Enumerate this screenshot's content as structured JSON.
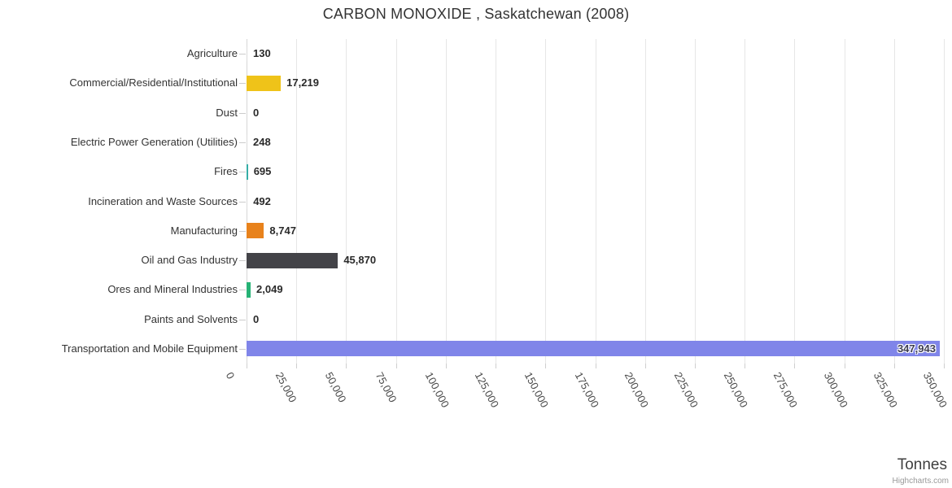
{
  "title": "CARBON MONOXIDE , Saskatchewan (2008)",
  "credits": "Highcharts.com",
  "xaxis": {
    "title": "Tonnes",
    "ticks": [
      "0",
      "25,000",
      "50,000",
      "75,000",
      "100,000",
      "125,000",
      "150,000",
      "175,000",
      "200,000",
      "225,000",
      "250,000",
      "275,000",
      "300,000",
      "325,000",
      "350,000"
    ]
  },
  "chart_data": {
    "type": "bar",
    "orientation": "horizontal",
    "title": "CARBON MONOXIDE , Saskatchewan (2008)",
    "xlabel": "Tonnes",
    "xlim": [
      0,
      350000
    ],
    "grid": true,
    "categories": [
      "Agriculture",
      "Commercial/Residential/Institutional",
      "Dust",
      "Electric Power Generation (Utilities)",
      "Fires",
      "Incineration and Waste Sources",
      "Manufacturing",
      "Oil and Gas Industry",
      "Ores and Mineral Industries",
      "Paints and Solvents",
      "Transportation and Mobile Equipment"
    ],
    "values": [
      130,
      17219,
      0,
      248,
      695,
      492,
      8747,
      45870,
      2049,
      0,
      347943
    ],
    "value_labels": [
      "130",
      "17,219",
      "0",
      "248",
      "695",
      "492",
      "8,747",
      "45,870",
      "2,049",
      "0",
      "347,943"
    ],
    "bar_colors": [
      "#d9d9d9",
      "#efc319",
      "#d9d9d9",
      "#d9d9d9",
      "#35ada6",
      "#d9d9d9",
      "#e8821c",
      "#434348",
      "#26b275",
      "#d9d9d9",
      "#8085e9"
    ],
    "xtick_labels": [
      "0",
      "25,000",
      "50,000",
      "75,000",
      "100,000",
      "125,000",
      "150,000",
      "175,000",
      "200,000",
      "225,000",
      "250,000",
      "275,000",
      "300,000",
      "325,000",
      "350,000"
    ],
    "colors": {
      "grid": "#e6e6e6",
      "axis_line": "#d6d6d6",
      "tick": "#cccccc",
      "label": "#333333",
      "value_label": "#2a2a2a"
    }
  }
}
